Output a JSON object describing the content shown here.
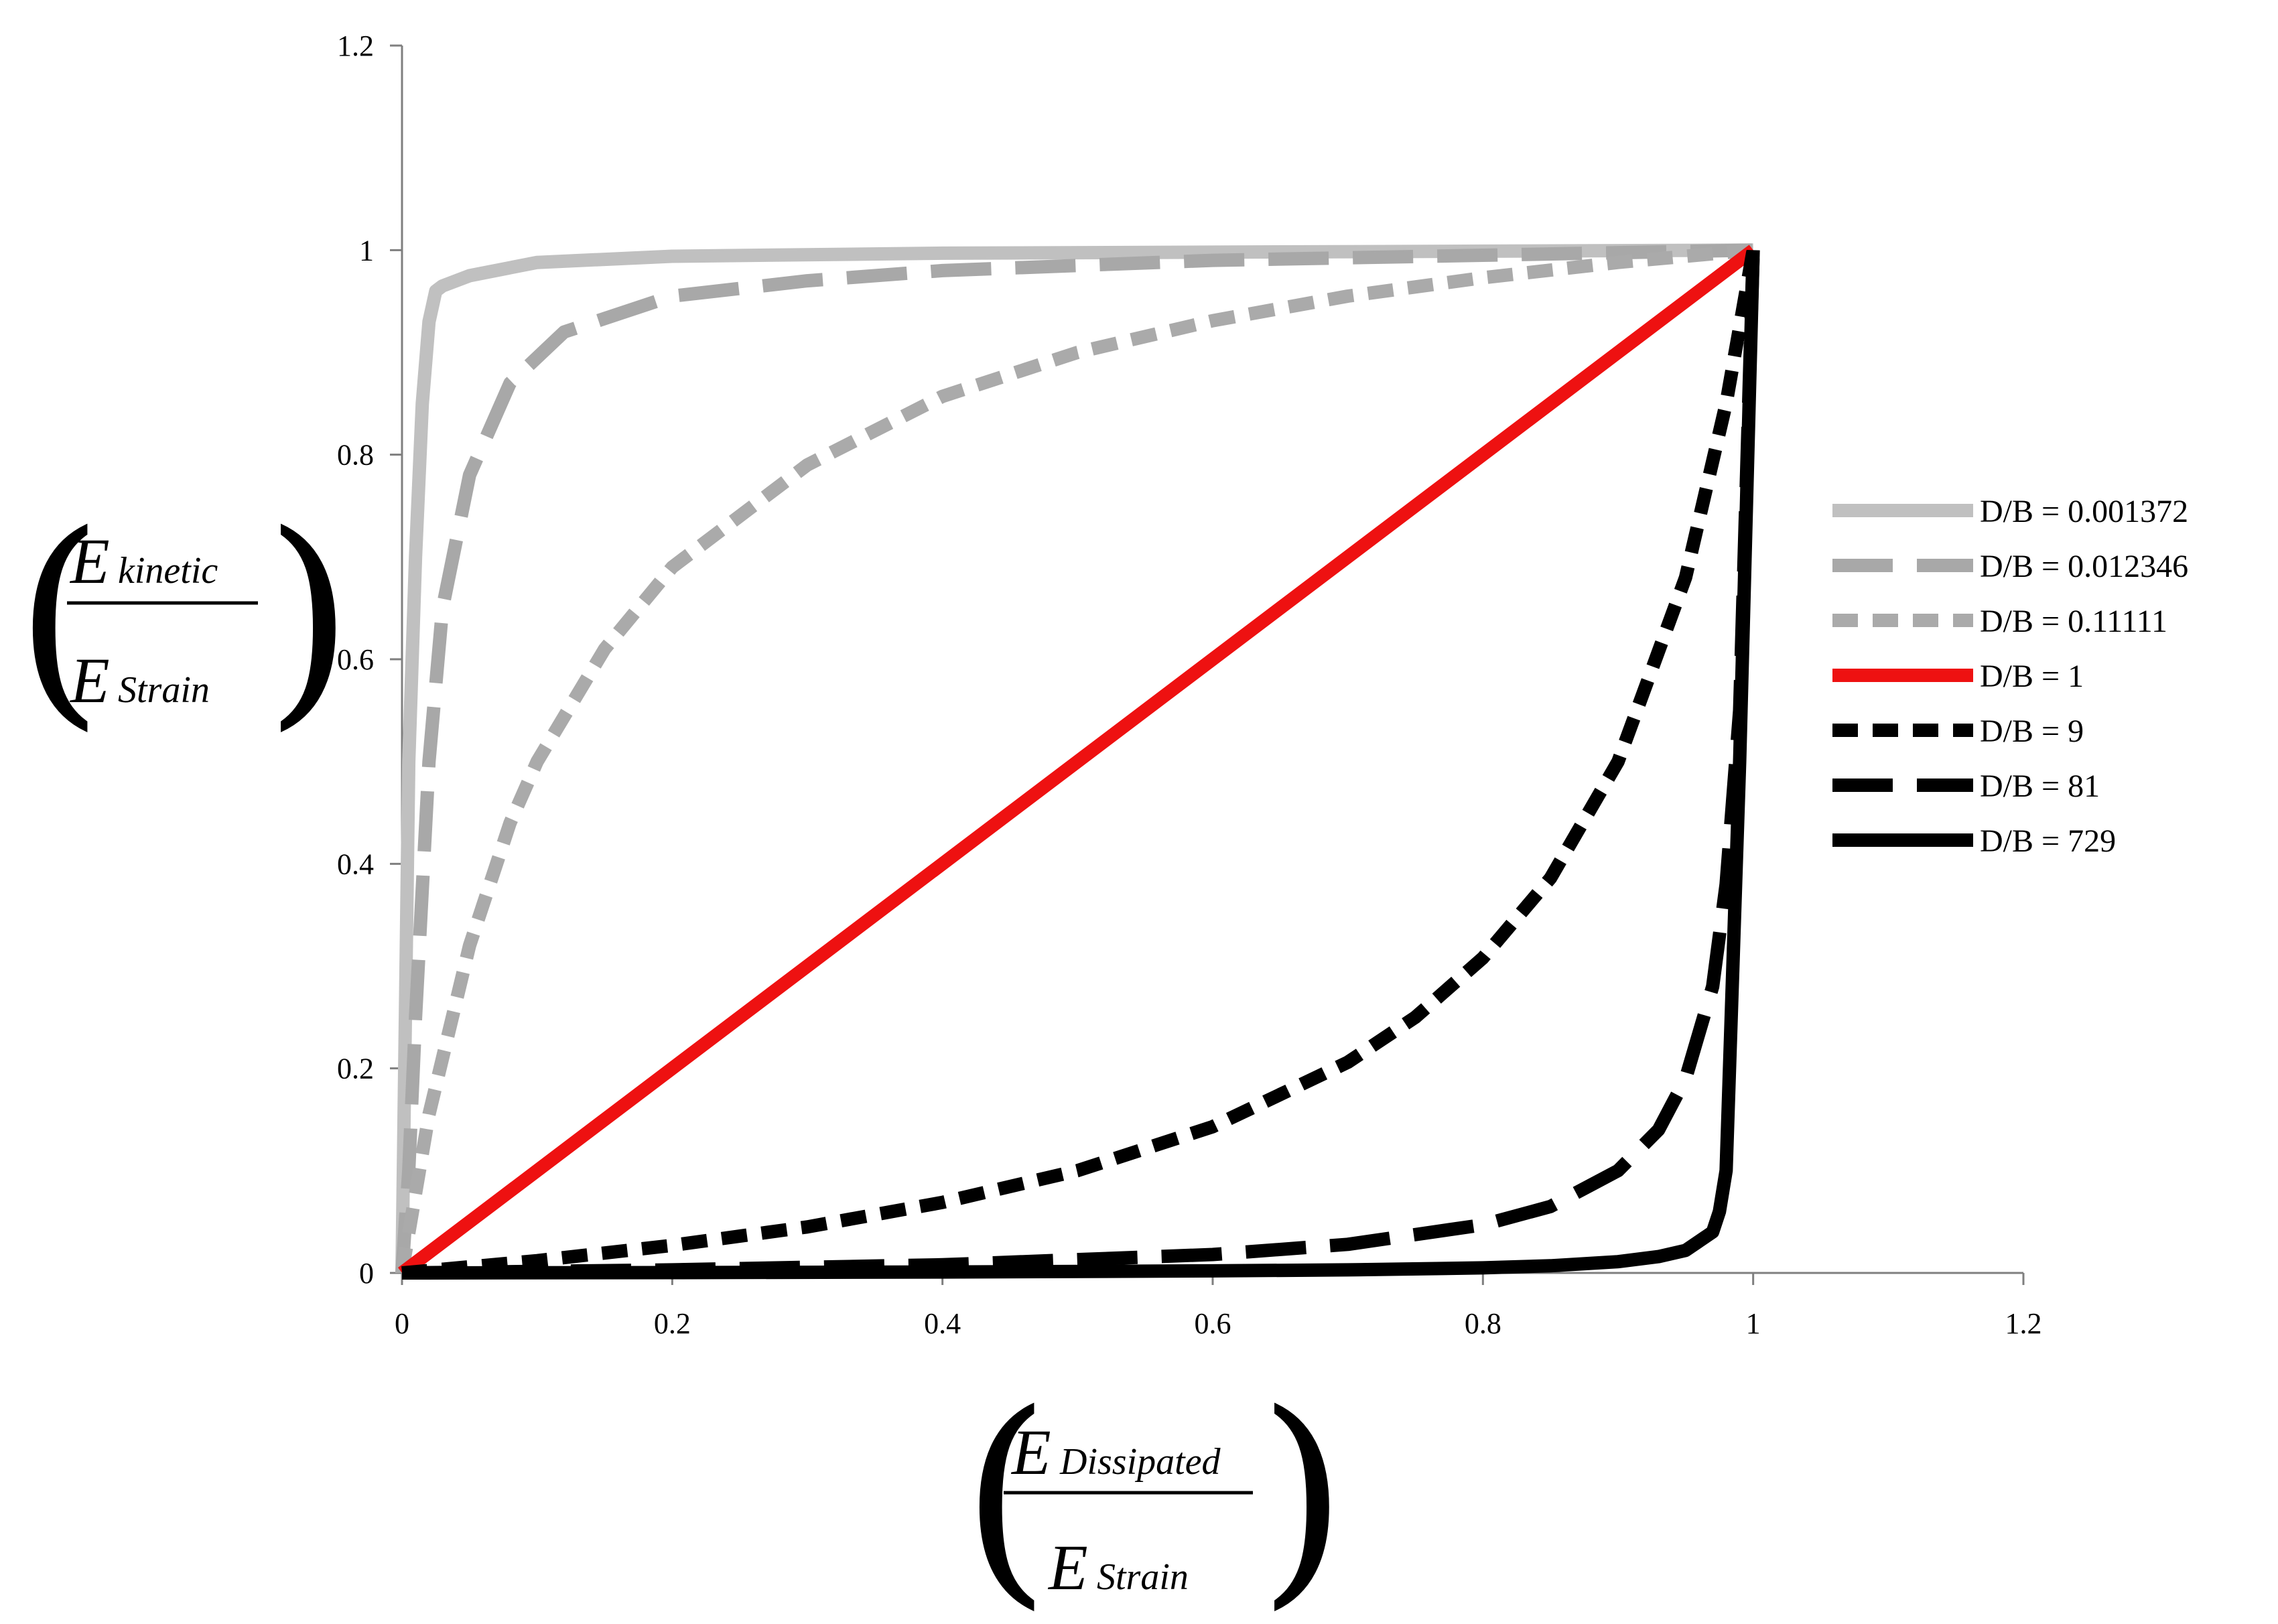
{
  "chart_data": {
    "type": "line",
    "title": "",
    "xlabel": {
      "numerator": "E",
      "numerator_sub": "Dissipated",
      "denominator": "E",
      "denominator_sub": "Strain"
    },
    "ylabel": {
      "numerator": "E",
      "numerator_sub": "kinetic",
      "denominator": "E",
      "denominator_sub": "Strain"
    },
    "xlim": [
      0,
      1.2
    ],
    "ylim": [
      0,
      1.2
    ],
    "xticks": [
      "0",
      "0.2",
      "0.4",
      "0.6",
      "0.8",
      "1",
      "1.2"
    ],
    "yticks": [
      "0",
      "0.2",
      "0.4",
      "0.6",
      "0.8",
      "1",
      "1.2"
    ],
    "grid": false,
    "legend_position": "right",
    "series": [
      {
        "name": "D/B = 0.001372",
        "color": "#c0c0c0",
        "dash": "solid",
        "x": [
          0,
          0.005,
          0.01,
          0.015,
          0.02,
          0.025,
          0.03,
          0.05,
          0.1,
          0.2,
          0.4,
          0.6,
          0.8,
          1.0
        ],
        "y": [
          0,
          0.5,
          0.7,
          0.85,
          0.93,
          0.96,
          0.965,
          0.975,
          0.988,
          0.994,
          0.997,
          0.998,
          0.999,
          1.0
        ]
      },
      {
        "name": "D/B = 0.012346",
        "color": "#a8a8a8",
        "dash": "longdash",
        "x": [
          0,
          0.005,
          0.01,
          0.02,
          0.03,
          0.05,
          0.08,
          0.12,
          0.2,
          0.3,
          0.4,
          0.6,
          0.8,
          1.0
        ],
        "y": [
          0,
          0.1,
          0.25,
          0.5,
          0.65,
          0.78,
          0.87,
          0.92,
          0.955,
          0.97,
          0.98,
          0.99,
          0.995,
          1.0
        ]
      },
      {
        "name": "D/B = 0.11111",
        "color": "#aaaaaa",
        "dash": "shortdash",
        "x": [
          0,
          0.02,
          0.05,
          0.08,
          0.1,
          0.15,
          0.2,
          0.3,
          0.4,
          0.5,
          0.6,
          0.7,
          0.8,
          0.9,
          1.0
        ],
        "y": [
          0,
          0.155,
          0.32,
          0.44,
          0.5,
          0.61,
          0.69,
          0.79,
          0.857,
          0.9,
          0.931,
          0.955,
          0.973,
          0.988,
          1.0
        ]
      },
      {
        "name": "D/B = 1",
        "color": "#ee1111",
        "dash": "solid",
        "x": [
          0,
          1.0
        ],
        "y": [
          0,
          1.0
        ]
      },
      {
        "name": "D/B = 9",
        "color": "#000000",
        "dash": "shortdash",
        "x": [
          0,
          0.1,
          0.2,
          0.3,
          0.4,
          0.5,
          0.6,
          0.7,
          0.75,
          0.8,
          0.85,
          0.9,
          0.95,
          0.98,
          1.0
        ],
        "y": [
          0,
          0.012,
          0.027,
          0.045,
          0.069,
          0.1,
          0.143,
          0.206,
          0.25,
          0.308,
          0.386,
          0.5,
          0.68,
          0.85,
          1.0
        ]
      },
      {
        "name": "D/B = 81",
        "color": "#000000",
        "dash": "longdash",
        "x": [
          0,
          0.2,
          0.4,
          0.6,
          0.7,
          0.8,
          0.85,
          0.9,
          0.93,
          0.95,
          0.97,
          0.98,
          0.99,
          1.0
        ],
        "y": [
          0,
          0.003,
          0.008,
          0.018,
          0.028,
          0.047,
          0.065,
          0.1,
          0.14,
          0.19,
          0.28,
          0.38,
          0.55,
          1.0
        ]
      },
      {
        "name": "D/B = 729",
        "color": "#000000",
        "dash": "solid",
        "x": [
          0,
          0.2,
          0.4,
          0.6,
          0.7,
          0.8,
          0.85,
          0.9,
          0.93,
          0.95,
          0.97,
          0.975,
          0.98,
          0.99,
          1.0
        ],
        "y": [
          0,
          0.0003,
          0.0009,
          0.002,
          0.003,
          0.005,
          0.007,
          0.011,
          0.016,
          0.022,
          0.04,
          0.06,
          0.1,
          0.5,
          1.0
        ]
      }
    ]
  }
}
